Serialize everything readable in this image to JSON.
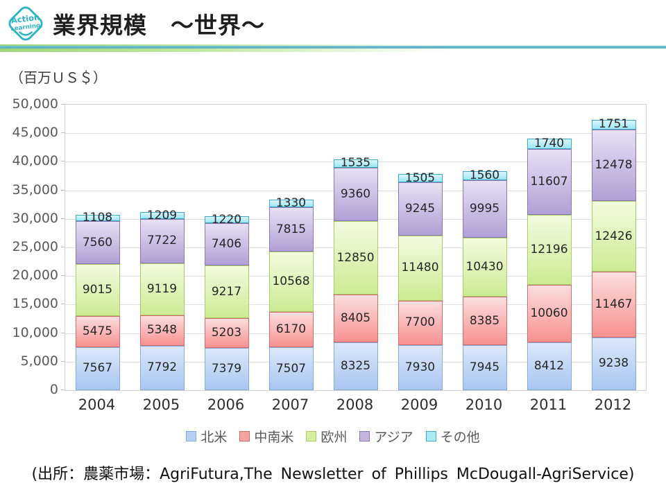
{
  "header": {
    "logo": {
      "line1": "Action",
      "line2": "Learning"
    },
    "title": "業界規模　～世界～"
  },
  "unit_label": "（百万ＵＳ＄）",
  "chart_data": {
    "type": "bar",
    "stacked": true,
    "title": "業界規模　～世界～",
    "ylabel": "（百万ＵＳ＄）",
    "categories": [
      "2004",
      "2005",
      "2006",
      "2007",
      "2008",
      "2009",
      "2010",
      "2011",
      "2012"
    ],
    "series": [
      {
        "name": "北米",
        "values": [
          7567,
          7792,
          7379,
          7507,
          8325,
          7930,
          7945,
          8412,
          9238
        ],
        "fill_top": "#dce7fa",
        "fill_bottom": "#a9c6f2",
        "border": "#87a9dc",
        "legend_fill": "#b7cef4"
      },
      {
        "name": "中南米",
        "values": [
          5475,
          5348,
          5203,
          6170,
          8405,
          7700,
          8385,
          10060,
          11467
        ],
        "fill_top": "#fcdede",
        "fill_bottom": "#f79191",
        "border": "#d06a6a",
        "legend_fill": "#f5a2a2"
      },
      {
        "name": "欧州",
        "values": [
          9015,
          9119,
          9217,
          10568,
          12850,
          11480,
          10430,
          12196,
          12426
        ],
        "fill_top": "#f3fbdf",
        "fill_bottom": "#cdeb93",
        "border": "#a9cb68",
        "legend_fill": "#d6ef9e"
      },
      {
        "name": "アジア",
        "values": [
          7560,
          7722,
          7406,
          7815,
          9360,
          9245,
          9995,
          11607,
          12478
        ],
        "fill_top": "#e7e0f3",
        "fill_bottom": "#b1a0d6",
        "border": "#8d77b0",
        "legend_fill": "#c4b4e0"
      },
      {
        "name": "その他",
        "values": [
          1108,
          1209,
          1220,
          1330,
          1535,
          1505,
          1560,
          1740,
          1751
        ],
        "fill_top": "#d9f6fc",
        "fill_bottom": "#9ce6f5",
        "border": "#3fa9c9",
        "legend_fill": "#abe9f7"
      }
    ],
    "ylim": [
      0,
      50000
    ],
    "ytick_step": 5000,
    "yticks": [
      "0",
      "5,000",
      "10,000",
      "15,000",
      "20,000",
      "25,000",
      "30,000",
      "35,000",
      "40,000",
      "45,000",
      "50,000"
    ],
    "grid": true,
    "value_labels": true,
    "legend_position": "bottom"
  },
  "footer": {
    "source": "(出所：農薬市場：AgriFutura,The Newsletter of Phillips McDougall-AgriService)"
  }
}
